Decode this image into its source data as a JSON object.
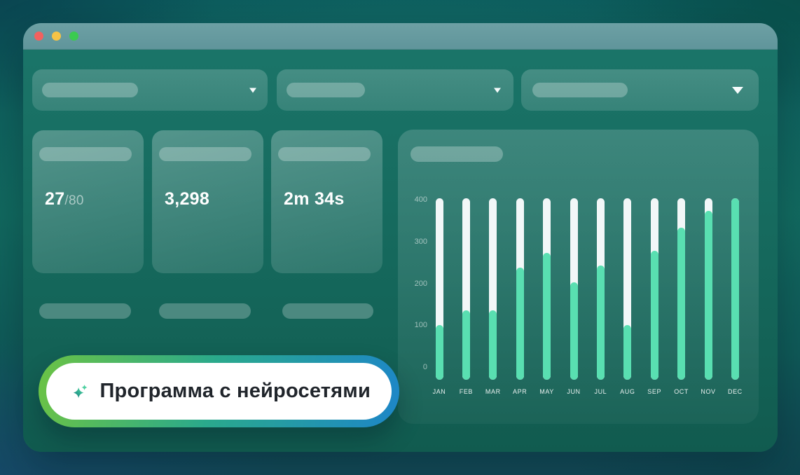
{
  "window": {
    "controls": [
      {
        "name": "close",
        "color": "#f2615f"
      },
      {
        "name": "minimize",
        "color": "#f6c345"
      },
      {
        "name": "zoom",
        "color": "#3bcb50"
      }
    ]
  },
  "filters": [
    {
      "icon": "chevron-down-icon",
      "chevron_size": "small"
    },
    {
      "icon": "chevron-down-icon",
      "chevron_size": "small"
    },
    {
      "icon": "chevron-down-icon",
      "chevron_size": "large"
    }
  ],
  "stats": [
    {
      "value": "27",
      "suffix": "/80"
    },
    {
      "value": "3,298",
      "suffix": ""
    },
    {
      "value": "2m 34s",
      "suffix": ""
    }
  ],
  "chart_data": {
    "type": "bar",
    "title": "",
    "categories": [
      "JAN",
      "FEB",
      "MAR",
      "APR",
      "MAY",
      "JUN",
      "JUL",
      "AUG",
      "SEP",
      "OCT",
      "NOV",
      "DEC"
    ],
    "values": [
      100,
      135,
      135,
      235,
      270,
      200,
      240,
      100,
      275,
      330,
      370,
      400
    ],
    "ylim": [
      0,
      400
    ],
    "yticks": [
      400,
      300,
      200,
      100,
      0
    ],
    "xlabel": "",
    "ylabel": "",
    "grid": false,
    "legend": "none",
    "track_color": "#f2f7f8",
    "fill_color": "#59dfb1"
  },
  "badge": {
    "label": "Программа с нейросетями",
    "icon": "sparkle-icon",
    "border_gradient": [
      "#6cc344",
      "#2aa98c",
      "#1d86c8"
    ],
    "icon_gradient": [
      "#52dca4",
      "#117d7d"
    ]
  }
}
